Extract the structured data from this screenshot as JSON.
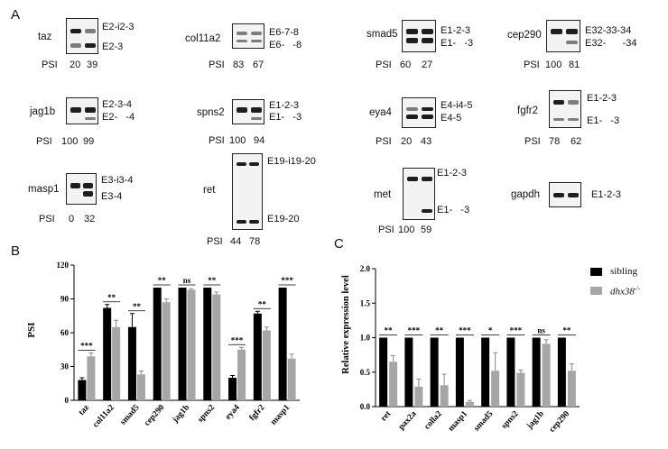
{
  "panel_labels": {
    "a": "A",
    "b": "B",
    "c": "C"
  },
  "gels": [
    {
      "gene": "taz",
      "bands": [
        "E2-i2-3",
        "E2-3"
      ],
      "psi_label": "PSI",
      "psi": [
        "20",
        "39"
      ]
    },
    {
      "gene": "jag1b",
      "bands": [
        "E2-3-4",
        "E2-   -4"
      ],
      "psi_label": "PSI",
      "psi": [
        "100",
        "99"
      ]
    },
    {
      "gene": "masp1",
      "bands": [
        "E3-i3-4",
        "E3-4"
      ],
      "psi_label": "PSI",
      "psi": [
        "0",
        "32"
      ]
    },
    {
      "gene": "col11a2",
      "bands": [
        "E6-7-8",
        "E6-   -8"
      ],
      "psi_label": "PSI",
      "psi": [
        "83",
        "67"
      ]
    },
    {
      "gene": "spns2",
      "bands": [
        "E1-2-3",
        "E1-   -3"
      ],
      "psi_label": "PSI",
      "psi": [
        "100",
        "94"
      ]
    },
    {
      "gene": "ret",
      "bands": [
        "E19-i19-20",
        "E19-20"
      ],
      "psi_label": "PSI",
      "psi": [
        "44",
        "78"
      ]
    },
    {
      "gene": "smad5",
      "bands": [
        "E1-2-3",
        "E1-   -3"
      ],
      "psi_label": "PSI",
      "psi": [
        "60",
        "27"
      ]
    },
    {
      "gene": "eya4",
      "bands": [
        "E4-i4-5",
        "E4-5"
      ],
      "psi_label": "PSI",
      "psi": [
        "20",
        "43"
      ]
    },
    {
      "gene": "met",
      "bands": [
        "E1-2-3",
        "E1-   -3"
      ],
      "psi_label": "PSI",
      "psi": [
        "100",
        "59"
      ]
    },
    {
      "gene": "cep290",
      "bands": [
        "E32-33-34",
        "E32-      -34"
      ],
      "psi_label": "PSI",
      "psi": [
        "100",
        "81"
      ]
    },
    {
      "gene": "fgfr2",
      "bands": [
        "E1-2-3",
        "E1-   -3"
      ],
      "psi_label": "PSI",
      "psi": [
        "78",
        "62"
      ]
    },
    {
      "gene": "gapdh",
      "bands": [
        "E1-2-3"
      ]
    }
  ],
  "chart_data": [
    {
      "type": "bar",
      "ylabel": "PSI",
      "ylim": [
        0,
        120
      ],
      "yticks": [
        "0",
        "30",
        "60",
        "90",
        "120"
      ],
      "categories": [
        "taz",
        "col11a2",
        "smad5",
        "cep290",
        "jag1b",
        "spns2",
        "eya4",
        "fgfr2",
        "masp1"
      ],
      "series": [
        {
          "values": [
            18,
            82,
            65,
            100,
            100,
            100,
            20,
            77,
            100
          ],
          "errors": [
            2,
            3,
            12,
            0,
            0,
            0,
            2,
            2,
            0
          ],
          "color": "#000000"
        },
        {
          "values": [
            39,
            65,
            23,
            87,
            98,
            94,
            45,
            62,
            37
          ],
          "errors": [
            3,
            6,
            3,
            3,
            1,
            2,
            2,
            3,
            4
          ],
          "color": "#a6a6a6"
        }
      ],
      "significance": [
        "***",
        "**",
        "**",
        "**",
        "ns",
        "**",
        "***",
        "**",
        "***"
      ]
    },
    {
      "type": "bar",
      "ylabel": "Relative expression level",
      "ylim": [
        0,
        2.0
      ],
      "yticks": [
        "0.0",
        "0.5",
        "1.0",
        "1.5",
        "2.0"
      ],
      "categories": [
        "ret",
        "pax2a",
        "colla2",
        "masp1",
        "smad5",
        "spns2",
        "jag1b",
        "cep290"
      ],
      "series": [
        {
          "name": "sibling",
          "values": [
            1,
            1,
            1,
            1,
            1,
            1,
            1,
            1
          ],
          "errors": [
            0,
            0,
            0,
            0,
            0,
            0,
            0,
            0
          ],
          "color": "#000000"
        },
        {
          "name": "dhx38",
          "name_sup": "-/-",
          "values": [
            0.65,
            0.29,
            0.31,
            0.07,
            0.52,
            0.49,
            0.91,
            0.52
          ],
          "errors": [
            0.09,
            0.11,
            0.16,
            0.02,
            0.26,
            0.04,
            0.06,
            0.1
          ],
          "color": "#a6a6a6"
        }
      ],
      "significance": [
        "**",
        "***",
        "**",
        "***",
        "*",
        "***",
        "ns",
        "**"
      ],
      "legend_position": "top-right"
    }
  ]
}
